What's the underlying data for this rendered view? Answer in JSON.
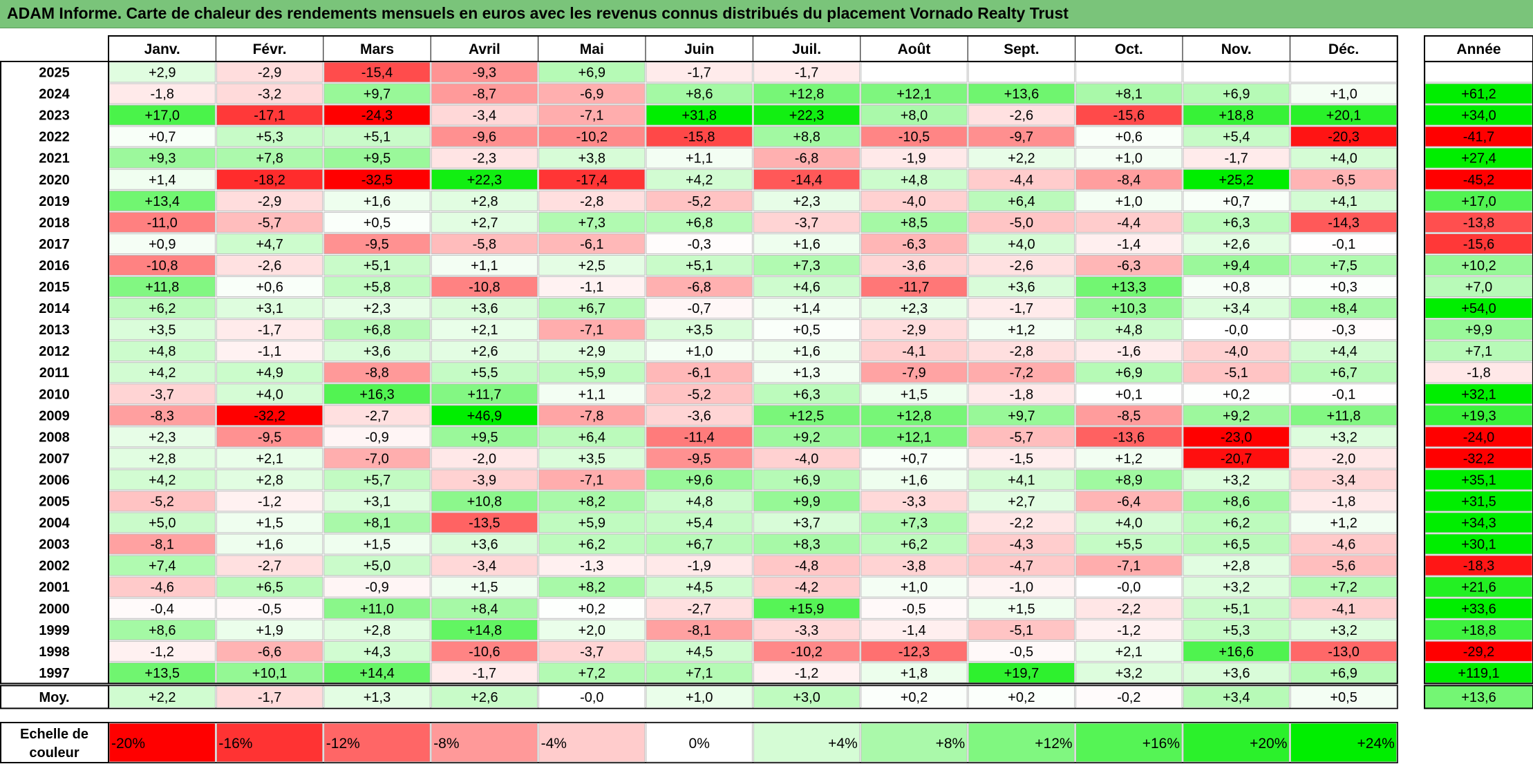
{
  "title": "ADAM Informe. Carte de chaleur des rendements mensuels en euros avec les revenus connus distribués du placement Vornado Realty Trust",
  "chart_data": {
    "type": "heatmap",
    "title": "ADAM Informe. Carte de chaleur des rendements mensuels en euros avec les revenus connus distribués du placement Vornado Realty Trust",
    "months": [
      "Janv.",
      "Févr.",
      "Mars",
      "Avril",
      "Mai",
      "Juin",
      "Juil.",
      "Août",
      "Sept.",
      "Oct.",
      "Nov.",
      "Déc."
    ],
    "annual_header": "Année",
    "rows": [
      {
        "year": "2025",
        "values": [
          "+2,9",
          "-2,9",
          "-15,4",
          "-9,3",
          "+6,9",
          "-1,7",
          "-1,7",
          "",
          "",
          "",
          "",
          ""
        ],
        "annual": ""
      },
      {
        "year": "2024",
        "values": [
          "-1,8",
          "-3,2",
          "+9,7",
          "-8,7",
          "-6,9",
          "+8,6",
          "+12,8",
          "+12,1",
          "+13,6",
          "+8,1",
          "+6,9",
          "+1,0"
        ],
        "annual": "+61,2"
      },
      {
        "year": "2023",
        "values": [
          "+17,0",
          "-17,1",
          "-24,3",
          "-3,4",
          "-7,1",
          "+31,8",
          "+22,3",
          "+8,0",
          "-2,6",
          "-15,6",
          "+18,8",
          "+20,1"
        ],
        "annual": "+34,0"
      },
      {
        "year": "2022",
        "values": [
          "+0,7",
          "+5,3",
          "+5,1",
          "-9,6",
          "-10,2",
          "-15,8",
          "+8,8",
          "-10,5",
          "-9,7",
          "+0,6",
          "+5,4",
          "-20,3"
        ],
        "annual": "-41,7"
      },
      {
        "year": "2021",
        "values": [
          "+9,3",
          "+7,8",
          "+9,5",
          "-2,3",
          "+3,8",
          "+1,1",
          "-6,8",
          "-1,9",
          "+2,2",
          "+1,0",
          "-1,7",
          "+4,0"
        ],
        "annual": "+27,4"
      },
      {
        "year": "2020",
        "values": [
          "+1,4",
          "-18,2",
          "-32,5",
          "+22,3",
          "-17,4",
          "+4,2",
          "-14,4",
          "+4,8",
          "-4,4",
          "-8,4",
          "+25,2",
          "-6,5"
        ],
        "annual": "-45,2"
      },
      {
        "year": "2019",
        "values": [
          "+13,4",
          "-2,9",
          "+1,6",
          "+2,8",
          "-2,8",
          "-5,2",
          "+2,3",
          "-4,0",
          "+6,4",
          "+1,0",
          "+0,7",
          "+4,1"
        ],
        "annual": "+17,0"
      },
      {
        "year": "2018",
        "values": [
          "-11,0",
          "-5,7",
          "+0,5",
          "+2,7",
          "+7,3",
          "+6,8",
          "-3,7",
          "+8,5",
          "-5,0",
          "-4,4",
          "+6,3",
          "-14,3"
        ],
        "annual": "-13,8"
      },
      {
        "year": "2017",
        "values": [
          "+0,9",
          "+4,7",
          "-9,5",
          "-5,8",
          "-6,1",
          "-0,3",
          "+1,6",
          "-6,3",
          "+4,0",
          "-1,4",
          "+2,6",
          "-0,1"
        ],
        "annual": "-15,6"
      },
      {
        "year": "2016",
        "values": [
          "-10,8",
          "-2,6",
          "+5,1",
          "+1,1",
          "+2,5",
          "+5,1",
          "+7,3",
          "-3,6",
          "-2,6",
          "-6,3",
          "+9,4",
          "+7,5"
        ],
        "annual": "+10,2"
      },
      {
        "year": "2015",
        "values": [
          "+11,8",
          "+0,6",
          "+5,8",
          "-10,8",
          "-1,1",
          "-6,8",
          "+4,6",
          "-11,7",
          "+3,6",
          "+13,3",
          "+0,8",
          "+0,3"
        ],
        "annual": "+7,0"
      },
      {
        "year": "2014",
        "values": [
          "+6,2",
          "+3,1",
          "+2,3",
          "+3,6",
          "+6,7",
          "-0,7",
          "+1,4",
          "+2,3",
          "-1,7",
          "+10,3",
          "+3,4",
          "+8,4"
        ],
        "annual": "+54,0"
      },
      {
        "year": "2013",
        "values": [
          "+3,5",
          "-1,7",
          "+6,8",
          "+2,1",
          "-7,1",
          "+3,5",
          "+0,5",
          "-2,9",
          "+1,2",
          "+4,8",
          "-0,0",
          "-0,3"
        ],
        "annual": "+9,9"
      },
      {
        "year": "2012",
        "values": [
          "+4,8",
          "-1,1",
          "+3,6",
          "+2,6",
          "+2,9",
          "+1,0",
          "+1,6",
          "-4,1",
          "-2,8",
          "-1,6",
          "-4,0",
          "+4,4"
        ],
        "annual": "+7,1"
      },
      {
        "year": "2011",
        "values": [
          "+4,2",
          "+4,9",
          "-8,8",
          "+5,5",
          "+5,9",
          "-6,1",
          "+1,3",
          "-7,9",
          "-7,2",
          "+6,9",
          "-5,1",
          "+6,7"
        ],
        "annual": "-1,8"
      },
      {
        "year": "2010",
        "values": [
          "-3,7",
          "+4,0",
          "+16,3",
          "+11,7",
          "+1,1",
          "-5,2",
          "+6,3",
          "+1,5",
          "-1,8",
          "+0,1",
          "+0,2",
          "-0,1"
        ],
        "annual": "+32,1"
      },
      {
        "year": "2009",
        "values": [
          "-8,3",
          "-32,2",
          "-2,7",
          "+46,9",
          "-7,8",
          "-3,6",
          "+12,5",
          "+12,8",
          "+9,7",
          "-8,5",
          "+9,2",
          "+11,8"
        ],
        "annual": "+19,3"
      },
      {
        "year": "2008",
        "values": [
          "+2,3",
          "-9,5",
          "-0,9",
          "+9,5",
          "+6,4",
          "-11,4",
          "+9,2",
          "+12,1",
          "-5,7",
          "-13,6",
          "-23,0",
          "+3,2"
        ],
        "annual": "-24,0"
      },
      {
        "year": "2007",
        "values": [
          "+2,8",
          "+2,1",
          "-7,0",
          "-2,0",
          "+3,5",
          "-9,5",
          "-4,0",
          "+0,7",
          "-1,5",
          "+1,2",
          "-20,7",
          "-2,0"
        ],
        "annual": "-32,2"
      },
      {
        "year": "2006",
        "values": [
          "+4,2",
          "+2,8",
          "+5,7",
          "-3,9",
          "-7,1",
          "+9,6",
          "+6,9",
          "+1,6",
          "+4,1",
          "+8,9",
          "+3,2",
          "-3,4"
        ],
        "annual": "+35,1"
      },
      {
        "year": "2005",
        "values": [
          "-5,2",
          "-1,2",
          "+3,1",
          "+10,8",
          "+8,2",
          "+4,8",
          "+9,9",
          "-3,3",
          "+2,7",
          "-6,4",
          "+8,6",
          "-1,8"
        ],
        "annual": "+31,5"
      },
      {
        "year": "2004",
        "values": [
          "+5,0",
          "+1,5",
          "+8,1",
          "-13,5",
          "+5,9",
          "+5,4",
          "+3,7",
          "+7,3",
          "-2,2",
          "+4,0",
          "+6,2",
          "+1,2"
        ],
        "annual": "+34,3"
      },
      {
        "year": "2003",
        "values": [
          "-8,1",
          "+1,6",
          "+1,5",
          "+3,6",
          "+6,2",
          "+6,7",
          "+8,3",
          "+6,2",
          "-4,3",
          "+5,5",
          "+6,5",
          "-4,6"
        ],
        "annual": "+30,1"
      },
      {
        "year": "2002",
        "values": [
          "+7,4",
          "-2,7",
          "+5,0",
          "-3,4",
          "-1,3",
          "-1,9",
          "-4,8",
          "-3,8",
          "-4,7",
          "-7,1",
          "+2,8",
          "-5,6"
        ],
        "annual": "-18,3"
      },
      {
        "year": "2001",
        "values": [
          "-4,6",
          "+6,5",
          "-0,9",
          "+1,5",
          "+8,2",
          "+4,5",
          "-4,2",
          "+1,0",
          "-1,0",
          "-0,0",
          "+3,2",
          "+7,2"
        ],
        "annual": "+21,6"
      },
      {
        "year": "2000",
        "values": [
          "-0,4",
          "-0,5",
          "+11,0",
          "+8,4",
          "+0,2",
          "-2,7",
          "+15,9",
          "-0,5",
          "+1,5",
          "-2,2",
          "+5,1",
          "-4,1"
        ],
        "annual": "+33,6"
      },
      {
        "year": "1999",
        "values": [
          "+8,6",
          "+1,9",
          "+2,8",
          "+14,8",
          "+2,0",
          "-8,1",
          "-3,3",
          "-1,4",
          "-5,1",
          "-1,2",
          "+5,3",
          "+3,2"
        ],
        "annual": "+18,8"
      },
      {
        "year": "1998",
        "values": [
          "-1,2",
          "-6,6",
          "+4,3",
          "-10,6",
          "-3,7",
          "+4,5",
          "-10,2",
          "-12,3",
          "-0,5",
          "+2,1",
          "+16,6",
          "-13,0"
        ],
        "annual": "-29,2"
      },
      {
        "year": "1997",
        "values": [
          "+13,5",
          "+10,1",
          "+14,4",
          "-1,7",
          "+7,2",
          "+7,1",
          "-1,2",
          "+1,8",
          "+19,7",
          "+3,2",
          "+3,6",
          "+6,9"
        ],
        "annual": "+119,1"
      }
    ],
    "average": {
      "label": "Moy.",
      "values": [
        "+2,2",
        "-1,7",
        "+1,3",
        "+2,6",
        "-0,0",
        "+1,0",
        "+3,0",
        "+0,2",
        "+0,2",
        "-0,2",
        "+3,4",
        "+0,5"
      ],
      "annual": "+13,6"
    },
    "scale": {
      "label_line1": "Echelle de",
      "label_line2": "couleur",
      "stops": [
        "-20%",
        "-16%",
        "-12%",
        "-8%",
        "-4%",
        "0%",
        "+4%",
        "+8%",
        "+12%",
        "+16%",
        "+20%",
        "+24%"
      ],
      "stop_values": [
        -20,
        -16,
        -12,
        -8,
        -4,
        0,
        4,
        8,
        12,
        16,
        20,
        24
      ]
    },
    "colors": {
      "negative_max": "#ff0000",
      "positive_max": "#00ee00",
      "neutral": "#ffffff",
      "title_bar": "#7ac47a"
    }
  }
}
